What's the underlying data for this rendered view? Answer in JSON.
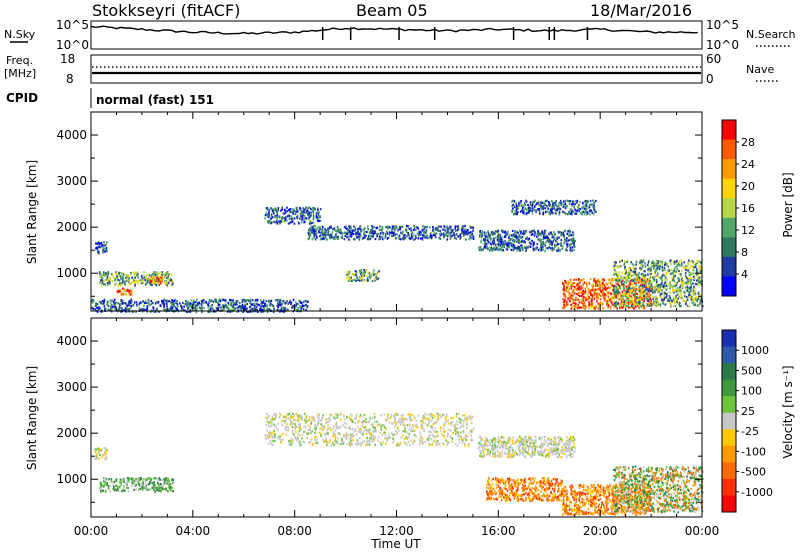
{
  "header": {
    "station": "Stokkseyri (fitACF)",
    "beam": "Beam 05",
    "date": "18/Mar/2016"
  },
  "nsky": {
    "label": "N.Sky",
    "left_ticks": [
      "10^5",
      "10^0"
    ],
    "right_ticks": [
      "10^5",
      "10^0"
    ],
    "right_label": "N.Search"
  },
  "freq": {
    "label_line1": "Freq.",
    "label_line2": "[MHz]",
    "left_ticks": [
      "18",
      "8"
    ],
    "right_ticks": [
      "60",
      "0"
    ],
    "right_label": "Nave"
  },
  "cpid": {
    "label": "CPID",
    "value": "normal (fast) 151"
  },
  "panels": {
    "power_ylabel": "Slant Range [km]",
    "velocity_ylabel": "Slant Range [km]",
    "y_ticks": [
      "4000",
      "3000",
      "2000",
      "1000"
    ],
    "x_ticks": [
      "00:00",
      "04:00",
      "08:00",
      "12:00",
      "16:00",
      "20:00",
      "00:00"
    ],
    "xlabel": "Time UT"
  },
  "power_scale": {
    "label": "Power [dB]",
    "ticks": [
      "28",
      "24",
      "20",
      "16",
      "12",
      "8",
      "4"
    ],
    "colors": [
      "#ff0000",
      "#ff5a00",
      "#ff9a00",
      "#ffd400",
      "#b6d64a",
      "#4fa86a",
      "#2f7a5e",
      "#1f3ca0",
      "#0000ff"
    ]
  },
  "velocity_scale": {
    "label": "Velocity [m s⁻¹]",
    "ticks": [
      "1000",
      "500",
      "100",
      "25",
      "-25",
      "-100",
      "-500",
      "-1000"
    ],
    "colors": [
      "#1a2fb0",
      "#2c5aa8",
      "#2a7a4a",
      "#3c9a3c",
      "#6ac43c",
      "#c8c8c8",
      "#ffc800",
      "#ff9a00",
      "#ff6a00",
      "#ff3000",
      "#ff0000"
    ]
  },
  "chart_data": {
    "type": "heatmap",
    "x_range_hours": [
      0,
      24
    ],
    "y_range_km": [
      180,
      4500
    ],
    "nsky_series_approx": [
      {
        "x": 0,
        "y": 0.8
      },
      {
        "x": 2,
        "y": 0.7
      },
      {
        "x": 4,
        "y": 0.6
      },
      {
        "x": 6,
        "y": 0.55
      },
      {
        "x": 8,
        "y": 0.6
      },
      {
        "x": 10,
        "y": 0.75
      },
      {
        "x": 12,
        "y": 0.7
      },
      {
        "x": 14,
        "y": 0.65
      },
      {
        "x": 16,
        "y": 0.7
      },
      {
        "x": 18,
        "y": 0.65
      },
      {
        "x": 20,
        "y": 0.7
      },
      {
        "x": 22,
        "y": 0.6
      },
      {
        "x": 24,
        "y": 0.6
      }
    ],
    "power_regions": [
      {
        "t0": 0.1,
        "t1": 0.6,
        "r0": 1450,
        "r1": 1700,
        "level": "low"
      },
      {
        "t0": 0.3,
        "t1": 3.2,
        "r0": 750,
        "r1": 1050,
        "level": "mid"
      },
      {
        "t0": 1.0,
        "t1": 1.6,
        "r0": 550,
        "r1": 700,
        "level": "high"
      },
      {
        "t0": 2.3,
        "t1": 2.8,
        "r0": 800,
        "r1": 950,
        "level": "high"
      },
      {
        "t0": 0.0,
        "t1": 8.5,
        "r0": 180,
        "r1": 450,
        "level": "low"
      },
      {
        "t0": 6.8,
        "t1": 9.0,
        "r0": 2100,
        "r1": 2450,
        "level": "low"
      },
      {
        "t0": 8.5,
        "t1": 15.0,
        "r0": 1750,
        "r1": 2050,
        "level": "low"
      },
      {
        "t0": 10.0,
        "t1": 11.3,
        "r0": 850,
        "r1": 1100,
        "level": "mid"
      },
      {
        "t0": 15.2,
        "t1": 19.0,
        "r0": 1500,
        "r1": 1950,
        "level": "low"
      },
      {
        "t0": 16.5,
        "t1": 19.8,
        "r0": 2300,
        "r1": 2600,
        "level": "low"
      },
      {
        "t0": 18.5,
        "t1": 22.0,
        "r0": 250,
        "r1": 900,
        "level": "very-high"
      },
      {
        "t0": 20.5,
        "t1": 24.0,
        "r0": 300,
        "r1": 1300,
        "level": "mid"
      }
    ],
    "velocity_regions": [
      {
        "t0": 0.1,
        "t1": 0.6,
        "r0": 1450,
        "r1": 1700,
        "level": "near-zero"
      },
      {
        "t0": 0.3,
        "t1": 3.2,
        "r0": 750,
        "r1": 1050,
        "level": "positive"
      },
      {
        "t0": 6.8,
        "t1": 15.0,
        "r0": 1750,
        "r1": 2450,
        "level": "near-zero"
      },
      {
        "t0": 15.2,
        "t1": 19.0,
        "r0": 1500,
        "r1": 1950,
        "level": "near-zero"
      },
      {
        "t0": 15.5,
        "t1": 18.5,
        "r0": 550,
        "r1": 1050,
        "level": "negative"
      },
      {
        "t0": 18.5,
        "t1": 22.0,
        "r0": 250,
        "r1": 900,
        "level": "negative"
      },
      {
        "t0": 20.5,
        "t1": 24.0,
        "r0": 300,
        "r1": 1300,
        "level": "mixed"
      }
    ]
  }
}
